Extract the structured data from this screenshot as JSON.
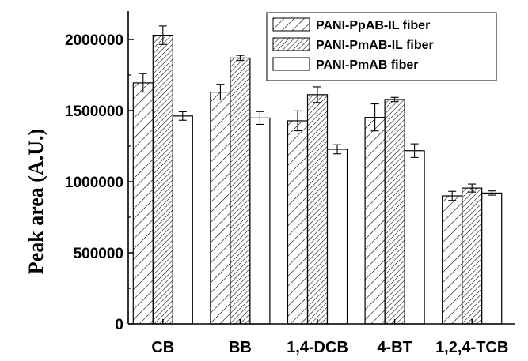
{
  "chart_data": {
    "type": "bar",
    "title": "",
    "xlabel": "",
    "ylabel": "Peak area (A.U.)",
    "ylim": [
      0,
      2200000
    ],
    "yticks": [
      0,
      500000,
      1000000,
      1500000,
      2000000
    ],
    "ytick_labels": [
      "0",
      "500000",
      "1000000",
      "1500000",
      "2000000"
    ],
    "categories": [
      "CB",
      "BB",
      "1,4-DCB",
      "4-BT",
      "1,2,4-TCB"
    ],
    "legend_position": "top-right",
    "grid": false,
    "series": [
      {
        "name": "PANI-PpAB-IL fiber",
        "pattern": "sparse-diagonal-hatch",
        "values": [
          1695000,
          1630000,
          1428000,
          1452000,
          900000
        ],
        "errors": [
          65000,
          55000,
          70000,
          95000,
          32000
        ]
      },
      {
        "name": "PANI-PmAB-IL fiber",
        "pattern": "dense-diagonal-hatch",
        "values": [
          2030000,
          1870000,
          1612000,
          1578000,
          955000
        ],
        "errors": [
          65000,
          18000,
          55000,
          15000,
          28000
        ]
      },
      {
        "name": "PANI-PmAB fiber",
        "pattern": "solid-white",
        "values": [
          1462000,
          1448000,
          1228000,
          1218000,
          920000
        ],
        "errors": [
          30000,
          45000,
          32000,
          48000,
          15000
        ]
      }
    ]
  }
}
